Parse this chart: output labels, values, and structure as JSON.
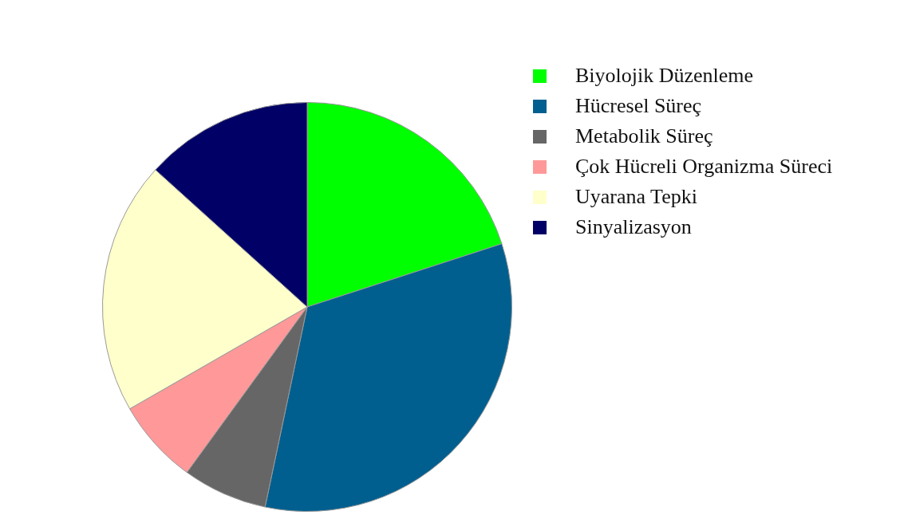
{
  "chart_data": {
    "type": "pie",
    "categories": [
      "Biyolojik Düzenleme",
      "Hücresel Süreç",
      "Metabolik Süreç",
      "Çok Hücreli Organizma Süreci",
      "Uyarana Tepki",
      "Sinyalizasyon"
    ],
    "values": [
      20,
      33.3,
      6.7,
      6.7,
      20,
      13.3
    ],
    "colors": [
      "#00ff00",
      "#005f8f",
      "#666666",
      "#ff9999",
      "#ffffcc",
      "#000066"
    ],
    "legend": "top right"
  }
}
